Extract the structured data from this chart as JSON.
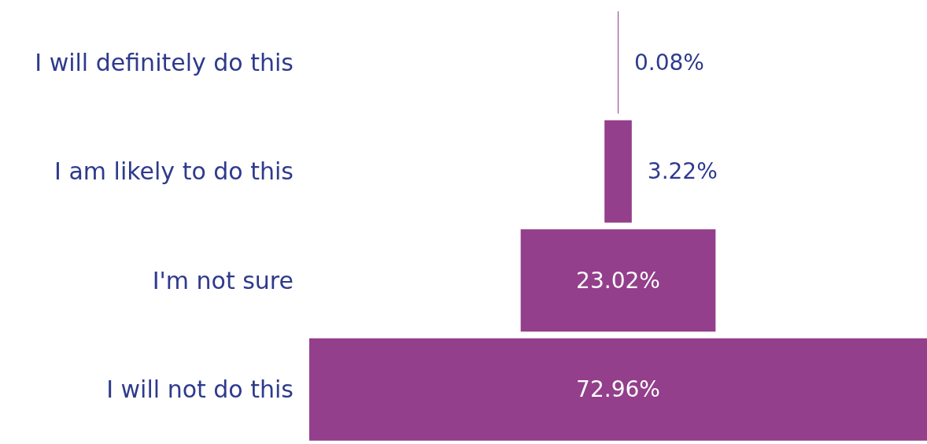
{
  "chart_data": {
    "type": "other",
    "categories": [
      "I will definitely do this",
      "I am likely to do this",
      "I'm not sure",
      "I will not do this"
    ],
    "values": [
      0.08,
      3.22,
      23.02,
      72.96
    ],
    "value_labels": [
      "0.08%",
      "3.22%",
      "23.02%",
      "72.96%"
    ],
    "color": "#933f8b"
  }
}
